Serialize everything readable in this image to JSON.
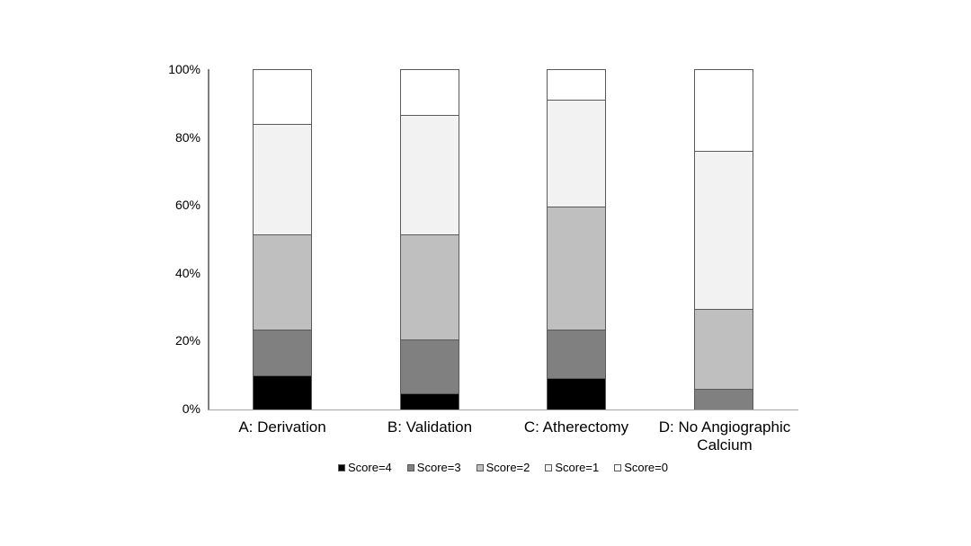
{
  "chart_data": {
    "type": "bar",
    "subtype": "stacked-100-percent-column",
    "title": "",
    "xlabel": "",
    "ylabel": "",
    "ylim": [
      0,
      100
    ],
    "grid": false,
    "legend_position": "bottom",
    "categories": [
      "A: Derivation",
      "B: Validation",
      "C: Atherectomy",
      "D: No Angiographic Calcium"
    ],
    "y_ticks": [
      "100%",
      "80%",
      "60%",
      "40%",
      "20%",
      "0%"
    ],
    "series": [
      {
        "name": "Score=4",
        "color": "#000000",
        "values": [
          10,
          4.5,
          9,
          0
        ]
      },
      {
        "name": "Score=3",
        "color": "#808080",
        "values": [
          13.5,
          16,
          14.5,
          6
        ]
      },
      {
        "name": "Score=2",
        "color": "#bfbfbf",
        "values": [
          28,
          31,
          36,
          23.5
        ]
      },
      {
        "name": "Score=1",
        "color": "#f2f2f2",
        "values": [
          32.5,
          35,
          31.5,
          46.5
        ]
      },
      {
        "name": "Score=0",
        "color": "#ffffff",
        "values": [
          16,
          13.5,
          9,
          24
        ]
      }
    ],
    "colors": {
      "segment_border": "#595959",
      "y_axis_line": "#808080",
      "x_axis_line": "#a6a6a6",
      "background": "#ffffff"
    }
  }
}
